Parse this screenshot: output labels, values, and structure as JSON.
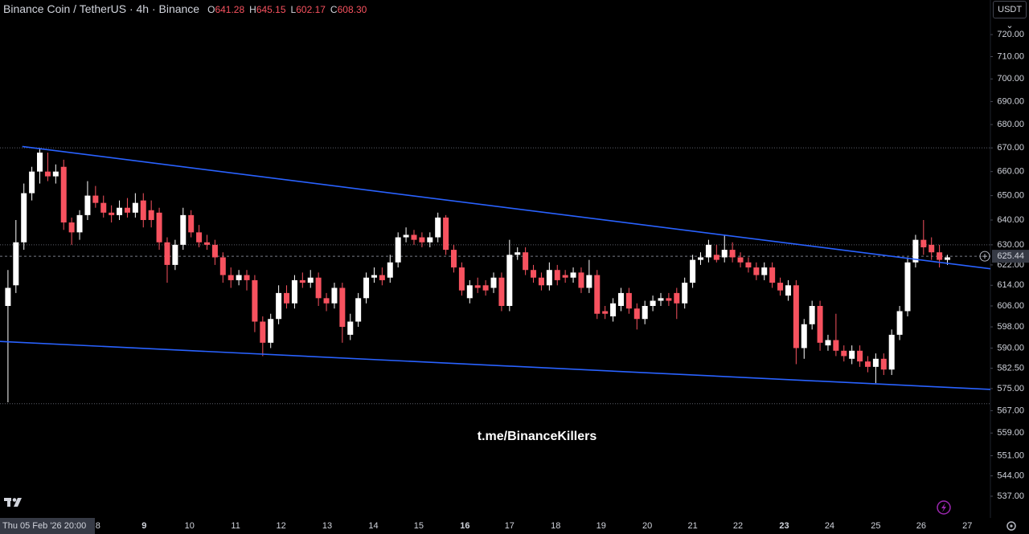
{
  "chart_data": {
    "type": "candlestick",
    "title": "Binance Coin / TetherUS · 4h · Binance",
    "ohlc_legend": [
      {
        "key": "O",
        "value": "641.28"
      },
      {
        "key": "H",
        "value": "645.15"
      },
      {
        "key": "L",
        "value": "602.17"
      },
      {
        "key": "C",
        "value": "608.30"
      }
    ],
    "currency": "USDT",
    "watermark": "t.me/BinanceKillers",
    "cursor_date": "Thu 05 Feb '26  20:00",
    "up_color": "#ffffff",
    "down_color": "#f7525f",
    "log_scale": true,
    "ylim": [
      531,
      736
    ],
    "xlim": [
      -1,
      123.4
    ],
    "yticks": [
      {
        "value": 720,
        "label": "720.00"
      },
      {
        "value": 710,
        "label": "710.00"
      },
      {
        "value": 700,
        "label": "700.00"
      },
      {
        "value": 690,
        "label": "690.00"
      },
      {
        "value": 680,
        "label": "680.00"
      },
      {
        "value": 670,
        "label": "670.00"
      },
      {
        "value": 660,
        "label": "660.00"
      },
      {
        "value": 650,
        "label": "650.00"
      },
      {
        "value": 640,
        "label": "640.00"
      },
      {
        "value": 630,
        "label": "630.00"
      },
      {
        "value": 622,
        "label": "622.00"
      },
      {
        "value": 614,
        "label": "614.00"
      },
      {
        "value": 606,
        "label": "606.00"
      },
      {
        "value": 598,
        "label": "598.00"
      },
      {
        "value": 590,
        "label": "590.00"
      },
      {
        "value": 582.5,
        "label": "582.50"
      },
      {
        "value": 575,
        "label": "575.00"
      },
      {
        "value": 567,
        "label": "567.00"
      },
      {
        "value": 559,
        "label": "559.00"
      },
      {
        "value": 551,
        "label": "551.00"
      },
      {
        "value": 544,
        "label": "544.00"
      },
      {
        "value": 537,
        "label": "537.00"
      }
    ],
    "xticks": [
      {
        "value": 11.3,
        "label": "8"
      },
      {
        "value": 17.1,
        "label": "9"
      },
      {
        "value": 22.8,
        "label": "10"
      },
      {
        "value": 28.6,
        "label": "11"
      },
      {
        "value": 34.3,
        "label": "12"
      },
      {
        "value": 40.1,
        "label": "13"
      },
      {
        "value": 45.9,
        "label": "14"
      },
      {
        "value": 51.6,
        "label": "15"
      },
      {
        "value": 57.4,
        "label": "16"
      },
      {
        "value": 63.0,
        "label": "17"
      },
      {
        "value": 68.8,
        "label": "18"
      },
      {
        "value": 74.5,
        "label": "19"
      },
      {
        "value": 80.3,
        "label": "20"
      },
      {
        "value": 86.0,
        "label": "21"
      },
      {
        "value": 91.7,
        "label": "22"
      },
      {
        "value": 97.5,
        "label": "23"
      },
      {
        "value": 103.2,
        "label": "24"
      },
      {
        "value": 109.0,
        "label": "25"
      },
      {
        "value": 114.7,
        "label": "26"
      },
      {
        "value": 120.5,
        "label": "27"
      }
    ],
    "bold_xticks": [
      1,
      8,
      15
    ],
    "current_price": {
      "value": 625.44,
      "label": "625.44"
    },
    "levels": [
      670,
      630,
      569.5
    ],
    "trendline_color": "#2962ff",
    "trendlines": [
      {
        "x": [
          1.8,
          123.4
        ],
        "y": [
          670.6,
          620.5
        ]
      },
      {
        "x": [
          -1,
          123.4
        ],
        "y": [
          592.5,
          574.7
        ]
      }
    ],
    "ohlc": [
      [
        606,
        620,
        570,
        613
      ],
      [
        614,
        640,
        611,
        631
      ],
      [
        631,
        655,
        628,
        651
      ],
      [
        651,
        662,
        648,
        660
      ],
      [
        660,
        670,
        655,
        668
      ],
      [
        660,
        668,
        656,
        658
      ],
      [
        658,
        663,
        655,
        660
      ],
      [
        662,
        665,
        636,
        639
      ],
      [
        639,
        641,
        630,
        635
      ],
      [
        635,
        644,
        632,
        642
      ],
      [
        642,
        656,
        640,
        650
      ],
      [
        650,
        654,
        645,
        647
      ],
      [
        647,
        650,
        641,
        643
      ],
      [
        643,
        646,
        639,
        642
      ],
      [
        642,
        648,
        640,
        645
      ],
      [
        645,
        649,
        641,
        643
      ],
      [
        643,
        651,
        641,
        647
      ],
      [
        648,
        651,
        637,
        640
      ],
      [
        644,
        648,
        637,
        640
      ],
      [
        643,
        645,
        628,
        631
      ],
      [
        631,
        633,
        615,
        622
      ],
      [
        622,
        632,
        620,
        630
      ],
      [
        630,
        645,
        628,
        642
      ],
      [
        642,
        644,
        633,
        635
      ],
      [
        635,
        638,
        629,
        631
      ],
      [
        631,
        634,
        628,
        630
      ],
      [
        630,
        632,
        622,
        625
      ],
      [
        625,
        627,
        615,
        618
      ],
      [
        618,
        621,
        613,
        616
      ],
      [
        616,
        620,
        614,
        618
      ],
      [
        618,
        620,
        612,
        616
      ],
      [
        616,
        618,
        596,
        600
      ],
      [
        600,
        602,
        587,
        592
      ],
      [
        592,
        603,
        590,
        601
      ],
      [
        601,
        614,
        599,
        611
      ],
      [
        611,
        614,
        605,
        607
      ],
      [
        607,
        618,
        605,
        616
      ],
      [
        616,
        619,
        613,
        615
      ],
      [
        615,
        620,
        613,
        617
      ],
      [
        617,
        619,
        606,
        609
      ],
      [
        609,
        611,
        604,
        607
      ],
      [
        607,
        615,
        605,
        613
      ],
      [
        613,
        615,
        592,
        598
      ],
      [
        595,
        603,
        593,
        600
      ],
      [
        600,
        611,
        598,
        609
      ],
      [
        609,
        619,
        607,
        617
      ],
      [
        617,
        621,
        615,
        618
      ],
      [
        618,
        621,
        614,
        616
      ],
      [
        617,
        626,
        615,
        623
      ],
      [
        623,
        635,
        621,
        633
      ],
      [
        633,
        637,
        631,
        634
      ],
      [
        634,
        636,
        630,
        632
      ],
      [
        633,
        635,
        629,
        631
      ],
      [
        631,
        635,
        629,
        633
      ],
      [
        633,
        643,
        631,
        641
      ],
      [
        641,
        642,
        626,
        628
      ],
      [
        628,
        630,
        619,
        621
      ],
      [
        621,
        623,
        610,
        612
      ],
      [
        609,
        616,
        607,
        614
      ],
      [
        614,
        617,
        611,
        613
      ],
      [
        614,
        616,
        610,
        612
      ],
      [
        613,
        619,
        611,
        617
      ],
      [
        617,
        619,
        604,
        606
      ],
      [
        606,
        632,
        604,
        626
      ],
      [
        626,
        629,
        624,
        627
      ],
      [
        627,
        629,
        618,
        620
      ],
      [
        620,
        622,
        615,
        617
      ],
      [
        617,
        619,
        612,
        614
      ],
      [
        614,
        623,
        612,
        620
      ],
      [
        620,
        622,
        614,
        616
      ],
      [
        618,
        620,
        615,
        617
      ],
      [
        617,
        621,
        615,
        619
      ],
      [
        619,
        621,
        611,
        613
      ],
      [
        613,
        624,
        611,
        618
      ],
      [
        618,
        620,
        601,
        603
      ],
      [
        604,
        606,
        601,
        603
      ],
      [
        602,
        609,
        600,
        607
      ],
      [
        606,
        613,
        604,
        611
      ],
      [
        611,
        613,
        603,
        605
      ],
      [
        605,
        607,
        597,
        601
      ],
      [
        601,
        608,
        599,
        606
      ],
      [
        606,
        610,
        604,
        608
      ],
      [
        608,
        611,
        606,
        609
      ],
      [
        609,
        611,
        606,
        608
      ],
      [
        611,
        613,
        601,
        607
      ],
      [
        607,
        617,
        605,
        615
      ],
      [
        615,
        626,
        613,
        624
      ],
      [
        624,
        627,
        622,
        625
      ],
      [
        625,
        632,
        623,
        630
      ],
      [
        626,
        630,
        623,
        624
      ],
      [
        625,
        634,
        623,
        628
      ],
      [
        628,
        631,
        623,
        625
      ],
      [
        625,
        627,
        621,
        623
      ],
      [
        623,
        625,
        619,
        621
      ],
      [
        621,
        623,
        616,
        618
      ],
      [
        618,
        623,
        616,
        621
      ],
      [
        621,
        623,
        613,
        615
      ],
      [
        615,
        617,
        610,
        612
      ],
      [
        610,
        616,
        608,
        614
      ],
      [
        614,
        616,
        584,
        590
      ],
      [
        590,
        601,
        586,
        599
      ],
      [
        599,
        608,
        597,
        606
      ],
      [
        606,
        608,
        589,
        592
      ],
      [
        591,
        595,
        589,
        593
      ],
      [
        593,
        603,
        587,
        589
      ],
      [
        589,
        591,
        585,
        587
      ],
      [
        586,
        591,
        584,
        589
      ],
      [
        589,
        591,
        583,
        585
      ],
      [
        585,
        587,
        581,
        583
      ],
      [
        583,
        588,
        577,
        586
      ],
      [
        586,
        588,
        580,
        582
      ],
      [
        582,
        597,
        580,
        595
      ],
      [
        595,
        606,
        593,
        604
      ],
      [
        604,
        625,
        602,
        623
      ],
      [
        623,
        634,
        621,
        632
      ],
      [
        632,
        640,
        626,
        629
      ],
      [
        630,
        633,
        624,
        627
      ],
      [
        627,
        630,
        621,
        624
      ],
      [
        624,
        626,
        622,
        625
      ]
    ]
  }
}
